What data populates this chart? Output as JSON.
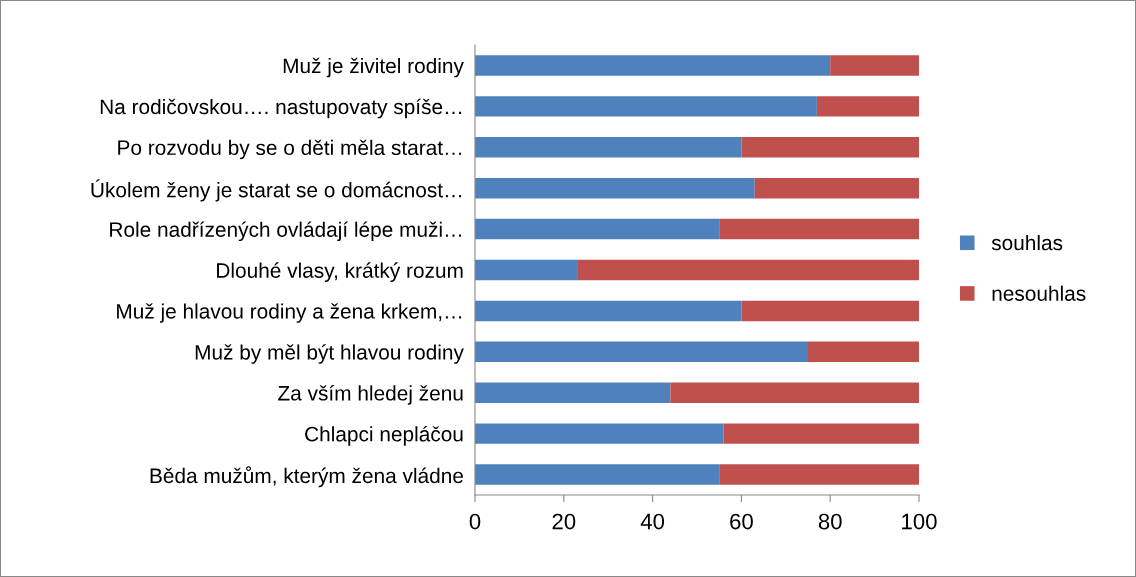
{
  "chart_data": {
    "type": "bar",
    "orientation": "horizontal",
    "stacked": true,
    "categories": [
      "Muž je živitel rodiny",
      "Na rodičovskou…. nastupovaty spíše…",
      "Po rozvodu by se o děti měla starat…",
      "Úkolem ženy je starat se o domácnost…",
      "Role nadřízených ovládají lépe muži…",
      "Dlouhé vlasy, krátký rozum",
      "Muž je hlavou rodiny a žena krkem,…",
      "Muž by měl být hlavou rodiny",
      "Za vším hledej ženu",
      "Chlapci nepláčou",
      "Běda mužům, kterým žena vládne"
    ],
    "series": [
      {
        "name": "souhlas",
        "color": "#4f81bd",
        "values": [
          80,
          77,
          60,
          63,
          55,
          23,
          60,
          75,
          44,
          56,
          55
        ]
      },
      {
        "name": "nesouhlas",
        "color": "#c0504d",
        "values": [
          20,
          23,
          40,
          37,
          45,
          77,
          40,
          25,
          56,
          44,
          45
        ]
      }
    ],
    "xlim": [
      0,
      100
    ],
    "xticks": [
      0,
      20,
      40,
      60,
      80,
      100
    ],
    "grid": false,
    "legend": "right"
  }
}
